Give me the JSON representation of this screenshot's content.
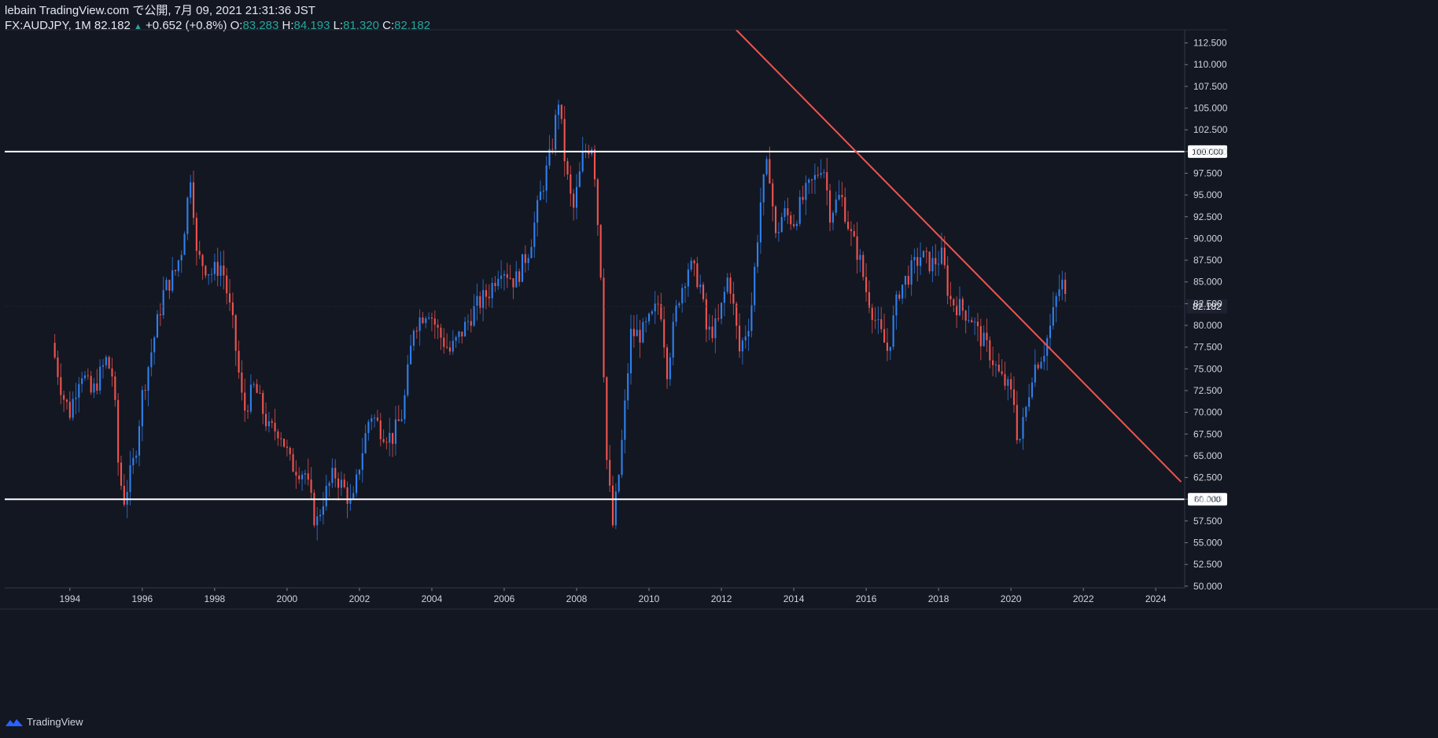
{
  "header": {
    "publisher_line": "lebain TradingView.com で公開, 7月 09, 2021 21:31:36 JST",
    "symbol": "FX:AUDJPY, 1M 82.182",
    "change_arrow": "▲",
    "change": "+0.652 (+0.8%)",
    "open_label": "O:",
    "open": "83.283",
    "high_label": "H:",
    "high": "84.193",
    "low_label": "L:",
    "low": "81.320",
    "close_label": "C:",
    "close": "82.182"
  },
  "footer": {
    "brand": "TradingView"
  },
  "colors": {
    "background": "#131722",
    "up": "#2f80ed",
    "down": "#f0544f",
    "trendline": "#f0544f",
    "horizontal_lines": "#ffffff",
    "axis_text": "#d1d4dc"
  },
  "chart_data": {
    "type": "candlestick",
    "symbol": "FX:AUDJPY",
    "interval": "1M",
    "y_ticks": [
      "112.500",
      "110.000",
      "107.500",
      "105.000",
      "102.500",
      "100.000",
      "97.500",
      "95.000",
      "92.500",
      "90.000",
      "87.500",
      "85.000",
      "82.500",
      "80.000",
      "77.500",
      "75.000",
      "72.500",
      "70.000",
      "67.500",
      "65.000",
      "62.500",
      "60.000",
      "57.500",
      "55.000",
      "52.500",
      "50.000"
    ],
    "x_ticks": [
      "1994",
      "1996",
      "1998",
      "2000",
      "2002",
      "2004",
      "2006",
      "2008",
      "2010",
      "2012",
      "2014",
      "2016",
      "2018",
      "2020",
      "2022",
      "2024"
    ],
    "xlim": [
      1992.2,
      2024.8
    ],
    "ylim": [
      49.8,
      114.0
    ],
    "horizontal_levels": [
      {
        "value": 100.0,
        "label": "100.000"
      },
      {
        "value": 60.0,
        "label": "60.000"
      }
    ],
    "last_price": {
      "value": 82.182,
      "label": "82.182"
    },
    "trendline": {
      "start": [
        2011.7,
        117.0
      ],
      "end": [
        2024.7,
        62.0
      ]
    },
    "monthly_close_path": [
      [
        1993.5,
        78
      ],
      [
        1993.8,
        72
      ],
      [
        1994.0,
        70
      ],
      [
        1994.3,
        75
      ],
      [
        1994.6,
        72
      ],
      [
        1995.0,
        76
      ],
      [
        1995.2,
        74
      ],
      [
        1995.35,
        63
      ],
      [
        1995.5,
        60
      ],
      [
        1995.8,
        65
      ],
      [
        1996.0,
        72
      ],
      [
        1996.3,
        78
      ],
      [
        1996.6,
        84
      ],
      [
        1996.9,
        86
      ],
      [
        1997.1,
        89
      ],
      [
        1997.35,
        98
      ],
      [
        1997.5,
        88
      ],
      [
        1997.9,
        86
      ],
      [
        1998.2,
        87
      ],
      [
        1998.5,
        80
      ],
      [
        1998.8,
        70
      ],
      [
        1999.1,
        73
      ],
      [
        1999.5,
        68
      ],
      [
        1999.8,
        68
      ],
      [
        2000.1,
        64
      ],
      [
        2000.5,
        63
      ],
      [
        2000.8,
        57
      ],
      [
        2001.0,
        60
      ],
      [
        2001.3,
        63
      ],
      [
        2001.6,
        61
      ],
      [
        2001.8,
        59
      ],
      [
        2002.0,
        64
      ],
      [
        2002.3,
        70
      ],
      [
        2002.6,
        68
      ],
      [
        2002.9,
        67
      ],
      [
        2003.2,
        70
      ],
      [
        2003.5,
        80
      ],
      [
        2003.9,
        82
      ],
      [
        2004.2,
        79
      ],
      [
        2004.5,
        77
      ],
      [
        2004.8,
        79
      ],
      [
        2005.2,
        82
      ],
      [
        2005.6,
        84
      ],
      [
        2005.9,
        87
      ],
      [
        2006.3,
        85
      ],
      [
        2006.7,
        89
      ],
      [
        2007.0,
        95
      ],
      [
        2007.3,
        100
      ],
      [
        2007.5,
        106
      ],
      [
        2007.7,
        98
      ],
      [
        2007.9,
        93
      ],
      [
        2008.2,
        100
      ],
      [
        2008.45,
        101
      ],
      [
        2008.7,
        84
      ],
      [
        2008.8,
        66
      ],
      [
        2009.0,
        57
      ],
      [
        2009.2,
        64
      ],
      [
        2009.5,
        79
      ],
      [
        2009.8,
        79
      ],
      [
        2010.1,
        81
      ],
      [
        2010.3,
        83
      ],
      [
        2010.5,
        75
      ],
      [
        2010.8,
        83
      ],
      [
        2011.1,
        87
      ],
      [
        2011.4,
        85
      ],
      [
        2011.6,
        79
      ],
      [
        2011.9,
        80
      ],
      [
        2012.2,
        86
      ],
      [
        2012.5,
        77
      ],
      [
        2012.8,
        81
      ],
      [
        2013.1,
        95
      ],
      [
        2013.3,
        99
      ],
      [
        2013.5,
        90
      ],
      [
        2013.7,
        93
      ],
      [
        2014.0,
        92
      ],
      [
        2014.3,
        95
      ],
      [
        2014.6,
        97
      ],
      [
        2014.8,
        99
      ],
      [
        2015.0,
        93
      ],
      [
        2015.3,
        95
      ],
      [
        2015.6,
        90
      ],
      [
        2015.8,
        88
      ],
      [
        2016.0,
        84
      ],
      [
        2016.3,
        80
      ],
      [
        2016.6,
        77
      ],
      [
        2016.9,
        84
      ],
      [
        2017.2,
        86
      ],
      [
        2017.5,
        88
      ],
      [
        2017.8,
        87
      ],
      [
        2018.1,
        88
      ],
      [
        2018.3,
        83
      ],
      [
        2018.6,
        82
      ],
      [
        2018.9,
        81
      ],
      [
        2019.1,
        79
      ],
      [
        2019.4,
        77
      ],
      [
        2019.7,
        74
      ],
      [
        2019.9,
        73
      ],
      [
        2020.1,
        71
      ],
      [
        2020.2,
        66
      ],
      [
        2020.4,
        70
      ],
      [
        2020.6,
        75
      ],
      [
        2020.9,
        77
      ],
      [
        2021.1,
        80
      ],
      [
        2021.3,
        84
      ],
      [
        2021.45,
        85
      ],
      [
        2021.52,
        82.182
      ]
    ]
  }
}
